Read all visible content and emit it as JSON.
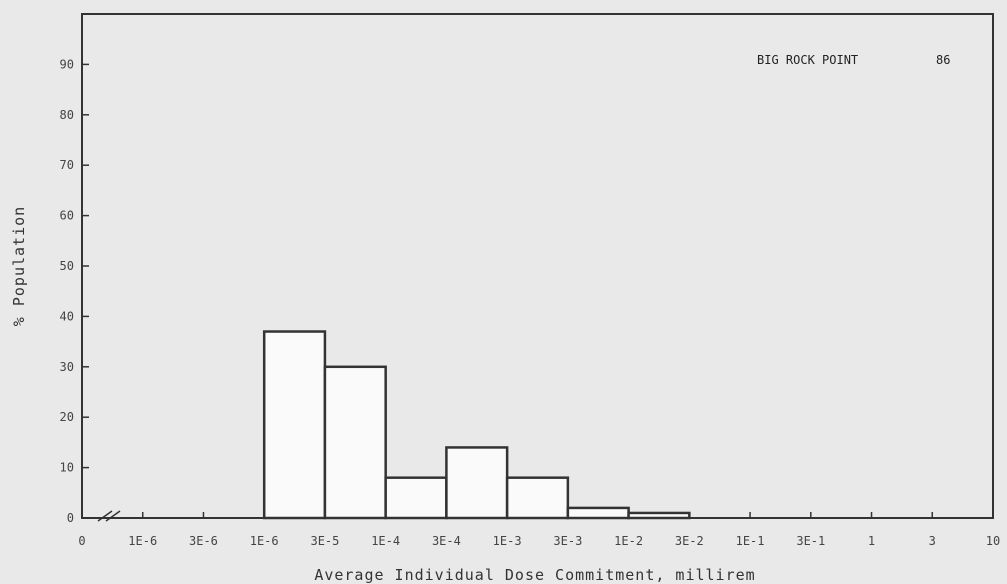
{
  "chart_data": {
    "type": "bar",
    "xlabel": "Average Individual Dose Commitment, millirem",
    "ylabel": "% Population",
    "ylim": [
      0,
      100
    ],
    "yticks": [
      0,
      10,
      20,
      30,
      40,
      50,
      60,
      70,
      80,
      90
    ],
    "xtick_labels": [
      "0",
      "1E-6",
      "3E-6",
      "1E-6",
      "3E-5",
      "1E-4",
      "3E-4",
      "1E-3",
      "3E-3",
      "1E-2",
      "3E-2",
      "1E-1",
      "3E-1",
      "1",
      "3",
      "10"
    ],
    "bin_edges": [
      "1E-6",
      "3E-5",
      "1E-4",
      "3E-4",
      "1E-3",
      "3E-3",
      "1E-2",
      "3E-2"
    ],
    "values": [
      37,
      30,
      8,
      14,
      8,
      2,
      1
    ],
    "annotation_site": "BIG ROCK POINT",
    "annotation_year": "86",
    "grid": false,
    "axis_break": true
  }
}
